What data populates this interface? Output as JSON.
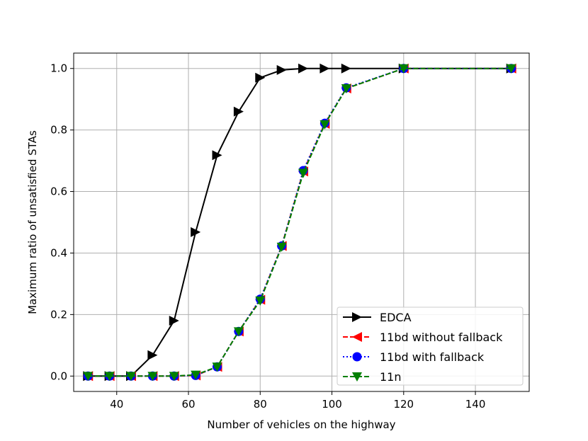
{
  "chart_data": {
    "type": "line",
    "title": "",
    "xlabel": "Number of vehicles on the highway",
    "ylabel": "Maximum ratio of unsatisfied STAs",
    "xlim": [
      28,
      155
    ],
    "ylim": [
      -0.05,
      1.05
    ],
    "xticks": [
      40,
      60,
      80,
      100,
      120,
      140
    ],
    "yticks": [
      0.0,
      0.2,
      0.4,
      0.6,
      0.8,
      1.0
    ],
    "xtick_labels": [
      "40",
      "60",
      "80",
      "100",
      "120",
      "140"
    ],
    "ytick_labels": [
      "0.0",
      "0.2",
      "0.4",
      "0.6",
      "0.8",
      "1.0"
    ],
    "grid": true,
    "legend_position": "lower-right",
    "series": [
      {
        "name": "EDCA",
        "color": "#000000",
        "line_style": "solid",
        "marker": "triangle-right",
        "x": [
          32,
          38,
          44,
          50,
          56,
          62,
          68,
          74,
          80,
          86,
          92,
          98,
          104,
          120,
          150
        ],
        "y": [
          0.0,
          0.0,
          0.0,
          0.068,
          0.18,
          0.468,
          0.718,
          0.86,
          0.97,
          0.995,
          1.0,
          1.0,
          1.0,
          1.0,
          1.0
        ]
      },
      {
        "name": "11bd without fallback",
        "color": "#ff0000",
        "line_style": "dashed",
        "marker": "triangle-left",
        "x": [
          32,
          38,
          44,
          50,
          56,
          62,
          68,
          74,
          80,
          86,
          92,
          98,
          104,
          120,
          150
        ],
        "y": [
          0.0,
          0.0,
          0.0,
          0.0,
          0.0,
          0.002,
          0.03,
          0.145,
          0.248,
          0.423,
          0.665,
          0.82,
          0.935,
          1.0,
          1.0
        ]
      },
      {
        "name": "11bd with fallback",
        "color": "#0000ff",
        "line_style": "dotted",
        "marker": "circle",
        "x": [
          32,
          38,
          44,
          50,
          56,
          62,
          68,
          74,
          80,
          86,
          92,
          98,
          104,
          120,
          150
        ],
        "y": [
          0.0,
          0.0,
          0.0,
          0.0,
          0.0,
          0.002,
          0.03,
          0.145,
          0.25,
          0.423,
          0.668,
          0.822,
          0.937,
          1.0,
          1.0
        ]
      },
      {
        "name": "11n",
        "color": "#008000",
        "line_style": "dashed",
        "marker": "triangle-down",
        "x": [
          32,
          38,
          44,
          50,
          56,
          62,
          68,
          74,
          80,
          86,
          92,
          98,
          104,
          120,
          150
        ],
        "y": [
          0.0,
          0.0,
          0.0,
          0.0,
          0.0,
          0.004,
          0.03,
          0.145,
          0.245,
          0.42,
          0.66,
          0.818,
          0.935,
          1.0,
          1.0
        ]
      }
    ]
  }
}
